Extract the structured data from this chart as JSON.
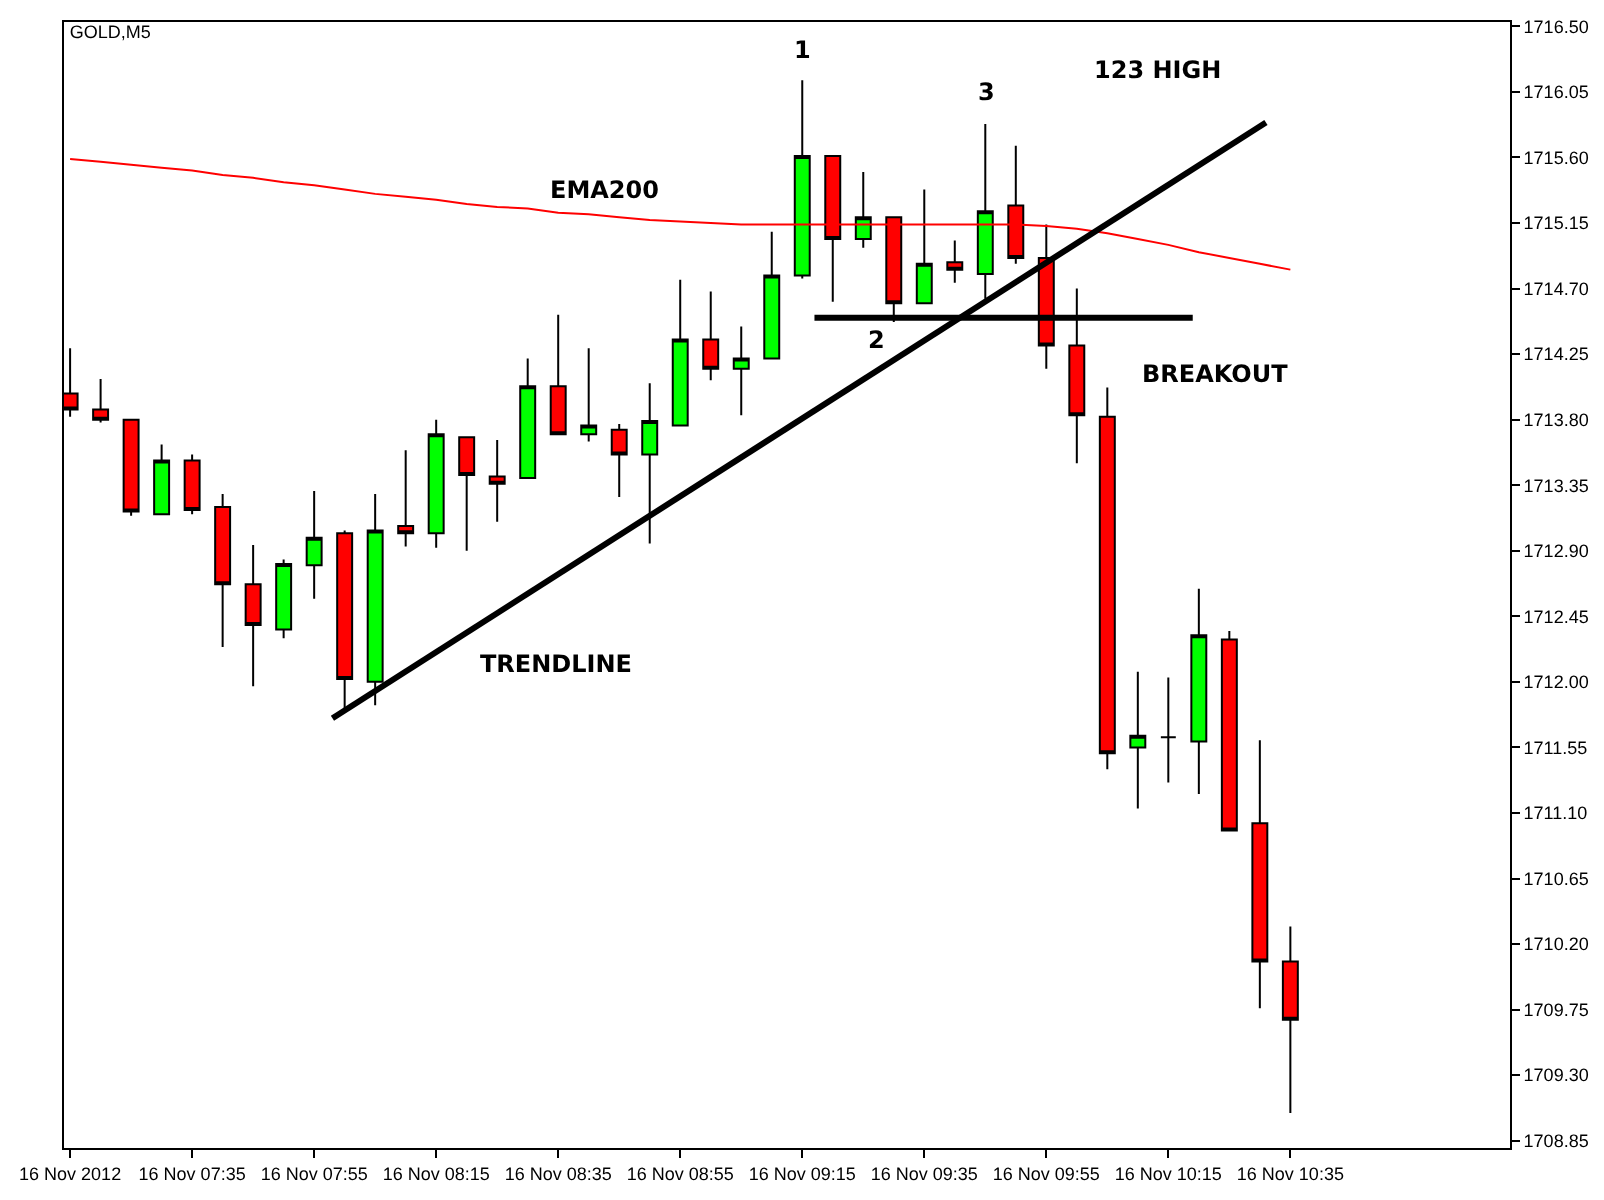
{
  "chart_data": {
    "type": "candlestick",
    "title": "GOLD,M5",
    "x": [
      "2012-11-16T07:15",
      "2012-11-16T07:20",
      "2012-11-16T07:25",
      "2012-11-16T07:30",
      "2012-11-16T07:35",
      "2012-11-16T07:40",
      "2012-11-16T07:45",
      "2012-11-16T07:50",
      "2012-11-16T07:55",
      "2012-11-16T08:00",
      "2012-11-16T08:05",
      "2012-11-16T08:10",
      "2012-11-16T08:15",
      "2012-11-16T08:20",
      "2012-11-16T08:25",
      "2012-11-16T08:30",
      "2012-11-16T08:35",
      "2012-11-16T08:40",
      "2012-11-16T08:45",
      "2012-11-16T08:50",
      "2012-11-16T08:55",
      "2012-11-16T09:00",
      "2012-11-16T09:05",
      "2012-11-16T09:10",
      "2012-11-16T09:15",
      "2012-11-16T09:20",
      "2012-11-16T09:25",
      "2012-11-16T09:30",
      "2012-11-16T09:35",
      "2012-11-16T09:40",
      "2012-11-16T09:45",
      "2012-11-16T09:50",
      "2012-11-16T09:55",
      "2012-11-16T10:00",
      "2012-11-16T10:05",
      "2012-11-16T10:10",
      "2012-11-16T10:15",
      "2012-11-16T10:20",
      "2012-11-16T10:25",
      "2012-11-16T10:30",
      "2012-11-16T10:35"
    ],
    "ohlc": [
      [
        1713.98,
        1714.29,
        1713.82,
        1713.87
      ],
      [
        1713.87,
        1714.08,
        1713.78,
        1713.8
      ],
      [
        1713.8,
        1713.8,
        1713.14,
        1713.17
      ],
      [
        1713.15,
        1713.63,
        1713.15,
        1713.52
      ],
      [
        1713.52,
        1713.56,
        1713.15,
        1713.18
      ],
      [
        1713.2,
        1713.29,
        1712.24,
        1712.67
      ],
      [
        1712.67,
        1712.94,
        1711.97,
        1712.39
      ],
      [
        1712.36,
        1712.84,
        1712.3,
        1712.81
      ],
      [
        1712.8,
        1713.31,
        1712.57,
        1712.99
      ],
      [
        1713.02,
        1713.04,
        1711.8,
        1712.02
      ],
      [
        1712.0,
        1713.29,
        1711.84,
        1713.04
      ],
      [
        1713.07,
        1713.59,
        1712.93,
        1713.02
      ],
      [
        1713.02,
        1713.8,
        1712.92,
        1713.7
      ],
      [
        1713.68,
        1713.68,
        1712.9,
        1713.42
      ],
      [
        1713.41,
        1713.66,
        1713.1,
        1713.36
      ],
      [
        1713.4,
        1714.22,
        1713.4,
        1714.03
      ],
      [
        1714.03,
        1714.52,
        1713.7,
        1713.7
      ],
      [
        1713.7,
        1714.29,
        1713.65,
        1713.76
      ],
      [
        1713.73,
        1713.77,
        1713.27,
        1713.56
      ],
      [
        1713.56,
        1714.05,
        1712.95,
        1713.79
      ],
      [
        1713.76,
        1714.76,
        1713.76,
        1714.35
      ],
      [
        1714.35,
        1714.68,
        1714.07,
        1714.15
      ],
      [
        1714.15,
        1714.44,
        1713.83,
        1714.22
      ],
      [
        1714.22,
        1715.09,
        1714.22,
        1714.79
      ],
      [
        1714.79,
        1716.13,
        1714.77,
        1715.61
      ],
      [
        1715.61,
        1715.61,
        1714.61,
        1715.04
      ],
      [
        1715.04,
        1715.5,
        1714.98,
        1715.19
      ],
      [
        1715.19,
        1715.19,
        1714.47,
        1714.6
      ],
      [
        1714.6,
        1715.38,
        1714.6,
        1714.87
      ],
      [
        1714.88,
        1715.03,
        1714.74,
        1714.83
      ],
      [
        1714.8,
        1715.83,
        1714.63,
        1715.23
      ],
      [
        1715.27,
        1715.68,
        1714.87,
        1714.91
      ],
      [
        1714.91,
        1715.14,
        1714.15,
        1714.31
      ],
      [
        1714.31,
        1714.7,
        1713.5,
        1713.83
      ],
      [
        1713.82,
        1714.02,
        1711.4,
        1711.51
      ],
      [
        1711.55,
        1712.07,
        1711.13,
        1711.63
      ],
      [
        1711.62,
        1712.03,
        1711.31,
        1711.62
      ],
      [
        1711.59,
        1712.64,
        1711.23,
        1712.32
      ],
      [
        1712.29,
        1712.35,
        1710.98,
        1710.98
      ],
      [
        1711.03,
        1711.6,
        1709.76,
        1710.08
      ],
      [
        1710.08,
        1710.32,
        1709.04,
        1709.68
      ]
    ],
    "colors": [
      "#ff0000",
      "#ff0000",
      "#ff0000",
      "#00ff00",
      "#ff0000",
      "#ff0000",
      "#ff0000",
      "#00ff00",
      "#00ff00",
      "#ff0000",
      "#00ff00",
      "#ff0000",
      "#00ff00",
      "#ff0000",
      "#ff0000",
      "#00ff00",
      "#ff0000",
      "#00ff00",
      "#ff0000",
      "#00ff00",
      "#00ff00",
      "#ff0000",
      "#00ff00",
      "#00ff00",
      "#00ff00",
      "#ff0000",
      "#00ff00",
      "#ff0000",
      "#00ff00",
      "#ff0000",
      "#00ff00",
      "#ff0000",
      "#ff0000",
      "#ff0000",
      "#ff0000",
      "#00ff00",
      "#000000",
      "#00ff00",
      "#ff0000",
      "#ff0000",
      "#ff0000"
    ],
    "series": [
      {
        "type": "line",
        "color": "#ff0000",
        "values": [
          1715.59,
          1715.57,
          1715.55,
          1715.53,
          1715.51,
          1715.48,
          1715.46,
          1715.43,
          1715.41,
          1715.38,
          1715.35,
          1715.33,
          1715.31,
          1715.28,
          1715.26,
          1715.25,
          1715.22,
          1715.21,
          1715.19,
          1715.17,
          1715.16,
          1715.15,
          1715.14,
          1715.14,
          1715.14,
          1715.14,
          1715.14,
          1715.14,
          1715.14,
          1715.14,
          1715.14,
          1715.14,
          1715.13,
          1715.11,
          1715.08,
          1715.04,
          1715.0,
          1714.95,
          1714.91,
          1714.87,
          1714.83
        ]
      },
      {
        "type": "line",
        "color": "#000000",
        "x": [
          "2012-11-16T07:58",
          "2012-11-16T10:31"
        ],
        "values": [
          1711.75,
          1715.84
        ]
      },
      {
        "type": "line",
        "color": "#000000",
        "x": [
          "2012-11-16T09:17",
          "2012-11-16T10:19"
        ],
        "values": [
          1714.5,
          1714.5
        ]
      }
    ],
    "xlim": [
      "2012-11-16T07:14",
      "2012-11-16T11:11"
    ],
    "xticks": [
      {
        "value": "2012-11-16T07:15",
        "label": "16 Nov 2012"
      },
      {
        "value": "2012-11-16T07:35",
        "label": "16 Nov 07:35"
      },
      {
        "value": "2012-11-16T07:55",
        "label": "16 Nov 07:55"
      },
      {
        "value": "2012-11-16T08:15",
        "label": "16 Nov 08:15"
      },
      {
        "value": "2012-11-16T08:35",
        "label": "16 Nov 08:35"
      },
      {
        "value": "2012-11-16T08:55",
        "label": "16 Nov 08:55"
      },
      {
        "value": "2012-11-16T09:15",
        "label": "16 Nov 09:15"
      },
      {
        "value": "2012-11-16T09:35",
        "label": "16 Nov 09:35"
      },
      {
        "value": "2012-11-16T09:55",
        "label": "16 Nov 09:55"
      },
      {
        "value": "2012-11-16T10:15",
        "label": "16 Nov 10:15"
      },
      {
        "value": "2012-11-16T10:35",
        "label": "16 Nov 10:35"
      }
    ],
    "ylim": [
      1708.8,
      1716.53
    ],
    "yticks": [
      {
        "value": 1716.5,
        "label": "1716.50"
      },
      1716.05,
      {
        "value": 1715.6,
        "label": "1715.60"
      },
      1715.15,
      {
        "value": 1714.7,
        "label": "1714.70"
      },
      1714.25,
      {
        "value": 1713.8,
        "label": "1713.80"
      },
      1713.35,
      {
        "value": 1712.9,
        "label": "1712.90"
      },
      1712.45,
      {
        "value": 1712.0,
        "label": "1712.00"
      },
      1711.55,
      {
        "value": 1711.1,
        "label": "1711.10"
      },
      1710.65,
      {
        "value": 1710.2,
        "label": "1710.20"
      },
      1709.75,
      {
        "value": 1709.3,
        "label": "1709.30"
      },
      1708.85
    ],
    "annotations": [
      {
        "text": "1",
        "x": "2012-11-16T09:15",
        "y": 1716.13
      },
      {
        "text": "2",
        "x": "2012-11-16T09:27",
        "y": 1714.5
      },
      {
        "text": "3",
        "x": "2012-11-16T09:45",
        "y": 1715.83
      },
      {
        "text": "123 HIGH",
        "x": "2012-11-16T10:31",
        "y": 1715.84
      },
      {
        "text": "EMA200",
        "x": "2012-11-16T08:45",
        "y": 1715.19
      },
      {
        "text": "BREAKOUT",
        "x": "2012-11-16T10:19",
        "y": 1714.5
      },
      "TRENDLINE"
    ]
  }
}
